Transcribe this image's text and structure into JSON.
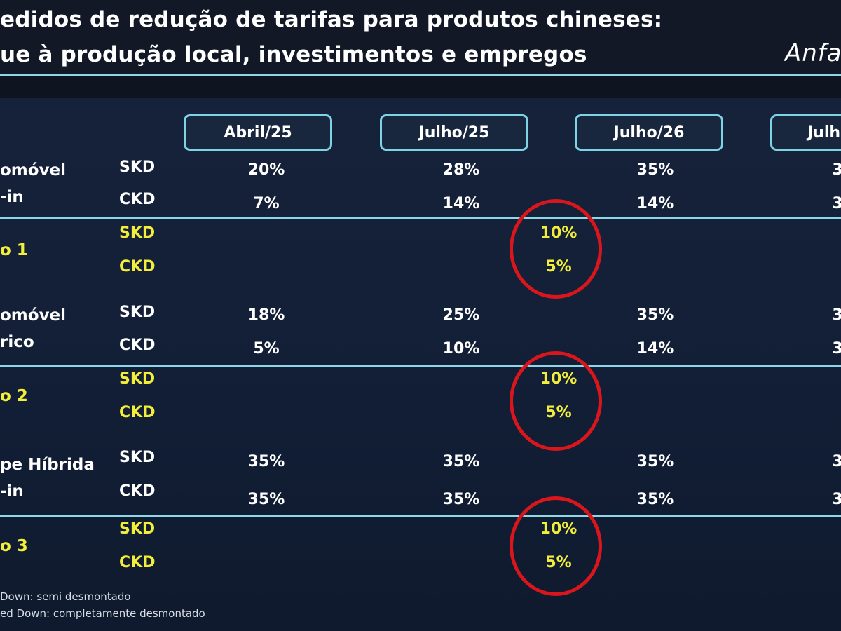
{
  "header": {
    "title_line1": "edidos de redução de tarifas para produtos chineses:",
    "title_line2": "ue à produção local, investimentos e empregos",
    "logo": "Anfa"
  },
  "columns": [
    "Abril/25",
    "Julho/25",
    "Julho/26",
    "Julh"
  ],
  "groups": [
    {
      "label_lines": [
        "omóvel",
        "-in"
      ],
      "rows": [
        {
          "type": "SKD",
          "values": [
            "20%",
            "28%",
            "35%",
            "3"
          ]
        },
        {
          "type": "CKD",
          "values": [
            "7%",
            "14%",
            "14%",
            "3"
          ]
        }
      ]
    },
    {
      "label_lines": [
        "o 1"
      ],
      "rows": [
        {
          "type": "SKD",
          "value": "10%"
        },
        {
          "type": "CKD",
          "value": "5%"
        }
      ]
    },
    {
      "label_lines": [
        "omóvel",
        "rico"
      ],
      "rows": [
        {
          "type": "SKD",
          "values": [
            "18%",
            "25%",
            "35%",
            "3"
          ]
        },
        {
          "type": "CKD",
          "values": [
            "5%",
            "10%",
            "14%",
            "3"
          ]
        }
      ]
    },
    {
      "label_lines": [
        "o 2"
      ],
      "rows": [
        {
          "type": "SKD",
          "value": "10%"
        },
        {
          "type": "CKD",
          "value": "5%"
        }
      ]
    },
    {
      "label_lines": [
        "pe Híbrida",
        "-in"
      ],
      "rows": [
        {
          "type": "SKD",
          "values": [
            "35%",
            "35%",
            "35%",
            "3"
          ]
        },
        {
          "type": "CKD",
          "values": [
            "35%",
            "35%",
            "35%",
            "3"
          ]
        }
      ]
    },
    {
      "label_lines": [
        "o 3"
      ],
      "rows": [
        {
          "type": "SKD",
          "value": "10%"
        },
        {
          "type": "CKD",
          "value": "5%"
        }
      ]
    }
  ],
  "footnotes": [
    "Down: semi desmontado",
    "ed Down: completamente desmontado"
  ],
  "colors": {
    "background": "#0e1420",
    "accent_line": "#8ed6e8",
    "highlight_text": "#f2ee3a",
    "circle": "#d9161c"
  }
}
